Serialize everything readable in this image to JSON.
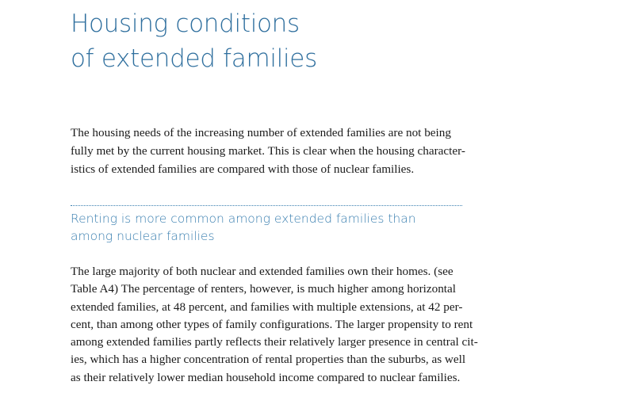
{
  "title": {
    "lines": [
      "Housing conditions",
      "of extended families"
    ]
  },
  "intro": {
    "lines": [
      "The housing needs of the increasing number of extended families are not being",
      "fully met by the current housing market. This is clear when the housing character-",
      "istics of extended families are compared with those of nuclear families."
    ]
  },
  "section": {
    "heading_lines": [
      "Renting is more common among extended families than",
      "among nuclear families"
    ],
    "body_lines": [
      "The large majority of both nuclear and extended families own their homes. (see",
      "Table A4) The percentage of renters, however, is much higher among horizontal",
      "extended families, at 48 percent, and families with multiple extensions, at 42 per-",
      "cent, than among other types of family configurations. The larger propensity to rent",
      "among extended families partly reflects their relatively larger presence in central cit-",
      "ies, which has a higher concentration of rental properties than the suburbs, as well",
      "as their relatively lower median household income compared to nuclear families."
    ]
  },
  "colors": {
    "heading": "#2f6f9e",
    "subheading": "#3a7fb0",
    "body_text": "#1a1a1a"
  }
}
